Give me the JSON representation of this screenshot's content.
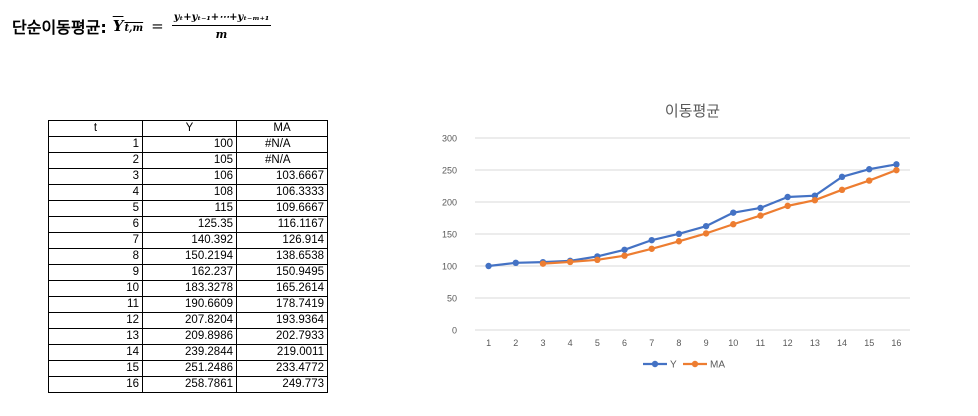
{
  "formula": {
    "title": "단순이동평균:",
    "lhs_base": "Y",
    "lhs_sub": "t,m",
    "equals": "=",
    "numerator": "yₜ+yₜ₋₁+⋯+yₜ₋ₘ₊₁",
    "denominator": "m"
  },
  "table": {
    "headers": [
      "t",
      "Y",
      "MA"
    ],
    "rows": [
      [
        "1",
        "100",
        "#N/A"
      ],
      [
        "2",
        "105",
        "#N/A"
      ],
      [
        "3",
        "106",
        "103.6667"
      ],
      [
        "4",
        "108",
        "106.3333"
      ],
      [
        "5",
        "115",
        "109.6667"
      ],
      [
        "6",
        "125.35",
        "116.1167"
      ],
      [
        "7",
        "140.392",
        "126.914"
      ],
      [
        "8",
        "150.2194",
        "138.6538"
      ],
      [
        "9",
        "162.237",
        "150.9495"
      ],
      [
        "10",
        "183.3278",
        "165.2614"
      ],
      [
        "11",
        "190.6609",
        "178.7419"
      ],
      [
        "12",
        "207.8204",
        "193.9364"
      ],
      [
        "13",
        "209.8986",
        "202.7933"
      ],
      [
        "14",
        "239.2844",
        "219.0011"
      ],
      [
        "15",
        "251.2486",
        "233.4772"
      ],
      [
        "16",
        "258.7861",
        "249.773"
      ]
    ]
  },
  "chart_data": {
    "type": "line",
    "title": "이동평균",
    "x": [
      1,
      2,
      3,
      4,
      5,
      6,
      7,
      8,
      9,
      10,
      11,
      12,
      13,
      14,
      15,
      16
    ],
    "ylim": [
      0,
      300
    ],
    "yticks": [
      0,
      50,
      100,
      150,
      200,
      250,
      300
    ],
    "grid": true,
    "legend": "bottom",
    "series": [
      {
        "name": "Y",
        "color": "#4472C4",
        "values": [
          100,
          105,
          106,
          108,
          115,
          125.35,
          140.392,
          150.2194,
          162.237,
          183.3278,
          190.6609,
          207.8204,
          209.8986,
          239.2844,
          251.2486,
          258.7861
        ]
      },
      {
        "name": "MA",
        "color": "#ED7D31",
        "values": [
          null,
          null,
          103.6667,
          106.3333,
          109.6667,
          116.1167,
          126.914,
          138.6538,
          150.9495,
          165.2614,
          178.7419,
          193.9364,
          202.7933,
          219.0011,
          233.4772,
          249.773
        ]
      }
    ]
  }
}
